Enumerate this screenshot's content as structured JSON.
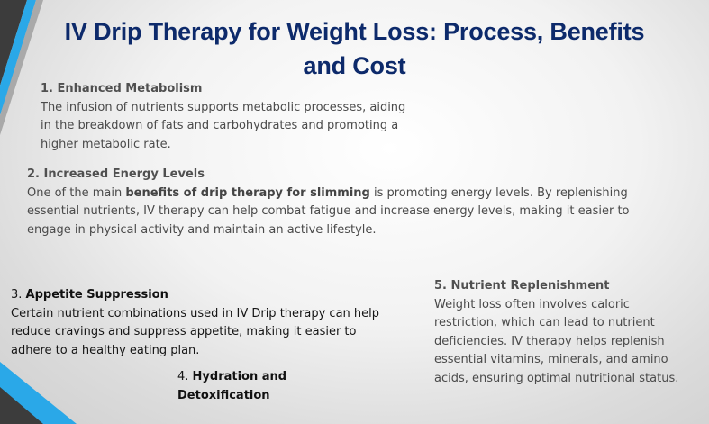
{
  "title": {
    "line1": "IV Drip Therapy for Weight Loss: Process, Benefits",
    "line2": "and Cost"
  },
  "sections": {
    "s1": {
      "heading": "1. Enhanced Metabolism",
      "body": "The infusion of nutrients supports metabolic processes, aiding in the breakdown of fats and carbohydrates and promoting a higher metabolic rate."
    },
    "s2": {
      "heading": "2. Increased Energy Levels",
      "body_before": "One of the main ",
      "body_bold": "benefits of drip therapy for slimming",
      "body_after": " is promoting energy levels. By replenishing essential nutrients, IV therapy can help combat fatigue and increase energy levels, making it easier to engage in physical activity and maintain an active lifestyle."
    },
    "s3": {
      "number": "3. ",
      "heading": "Appetite Suppression",
      "body": "Certain nutrient combinations used in IV Drip therapy can help reduce cravings and suppress appetite, making it easier to adhere to a healthy eating plan."
    },
    "s4": {
      "number": "4. ",
      "heading": "Hydration and Detoxification"
    },
    "s5": {
      "heading": "5. Nutrient Replenishment",
      "body": "Weight loss often involves caloric restriction, which can lead to nutrient deficiencies. IV therapy helps replenish essential vitamins, minerals, and amino acids, ensuring optimal nutritional status."
    }
  },
  "colors": {
    "title": "#0d2a6b",
    "accent_blue": "#2aa8e8",
    "accent_dark": "#3c3c3c"
  }
}
